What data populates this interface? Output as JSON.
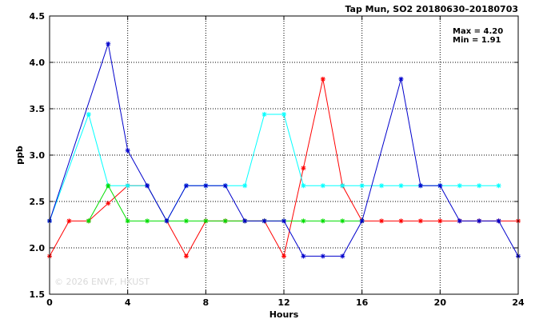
{
  "chart_data": {
    "type": "line",
    "title": "Tap Mun, SO2 20180630–20180703",
    "xlabel": "Hours",
    "ylabel": "ppb",
    "xlim": [
      0,
      24
    ],
    "ylim": [
      1.5,
      4.5
    ],
    "xticks": [
      "0",
      "4",
      "8",
      "12",
      "16",
      "20",
      "24"
    ],
    "yticks": [
      "1.5",
      "2.0",
      "2.5",
      "3.0",
      "3.5",
      "4.0",
      "4.5"
    ],
    "grid": true,
    "stats": [
      "Max = 4.20",
      "Min = 1.91"
    ],
    "watermark": "© 2026 ENVF, HKUST",
    "series": [
      {
        "color": "#ff0000",
        "x": [
          0,
          1,
          2,
          3,
          4,
          5,
          6,
          7,
          8,
          9,
          10,
          11,
          12,
          13,
          14,
          15,
          16,
          17,
          18,
          19,
          20,
          21,
          22,
          23,
          24
        ],
        "y": [
          1.91,
          2.29,
          2.29,
          2.48,
          2.67,
          2.67,
          2.29,
          1.91,
          2.29,
          2.29,
          2.29,
          2.29,
          1.91,
          2.86,
          3.82,
          2.67,
          2.29,
          2.29,
          2.29,
          2.29,
          2.29,
          2.29,
          2.29,
          2.29,
          2.29
        ]
      },
      {
        "color": "#00ffff",
        "x": [
          0,
          2,
          3,
          4,
          5,
          6,
          7,
          8,
          9,
          10,
          11,
          12,
          13,
          14,
          15,
          16,
          17,
          18,
          19,
          20,
          21,
          22,
          23
        ],
        "y": [
          2.29,
          3.44,
          2.67,
          2.67,
          2.67,
          2.29,
          2.67,
          2.67,
          2.67,
          2.67,
          3.44,
          3.44,
          2.67,
          2.67,
          2.67,
          2.67,
          2.67,
          2.67,
          2.67,
          2.67,
          2.67,
          2.67,
          2.67
        ]
      },
      {
        "color": "#00dd00",
        "x": [
          2,
          3,
          4,
          5,
          6,
          7,
          8,
          9,
          10,
          11,
          12,
          13,
          14,
          15,
          16
        ],
        "y": [
          2.29,
          2.67,
          2.29,
          2.29,
          2.29,
          2.29,
          2.29,
          2.29,
          2.29,
          2.29,
          2.29,
          2.29,
          2.29,
          2.29,
          2.29
        ]
      },
      {
        "color": "#0000cc",
        "x": [
          0,
          3,
          4,
          5,
          6,
          7,
          8,
          9,
          10,
          11,
          12,
          13,
          14,
          15,
          16,
          18,
          19,
          20,
          21,
          22,
          23,
          24
        ],
        "y": [
          2.29,
          4.2,
          3.05,
          2.67,
          2.29,
          2.67,
          2.67,
          2.67,
          2.29,
          2.29,
          2.29,
          1.91,
          1.91,
          1.91,
          2.29,
          3.82,
          2.67,
          2.67,
          2.29,
          2.29,
          2.29,
          1.91
        ]
      }
    ]
  }
}
